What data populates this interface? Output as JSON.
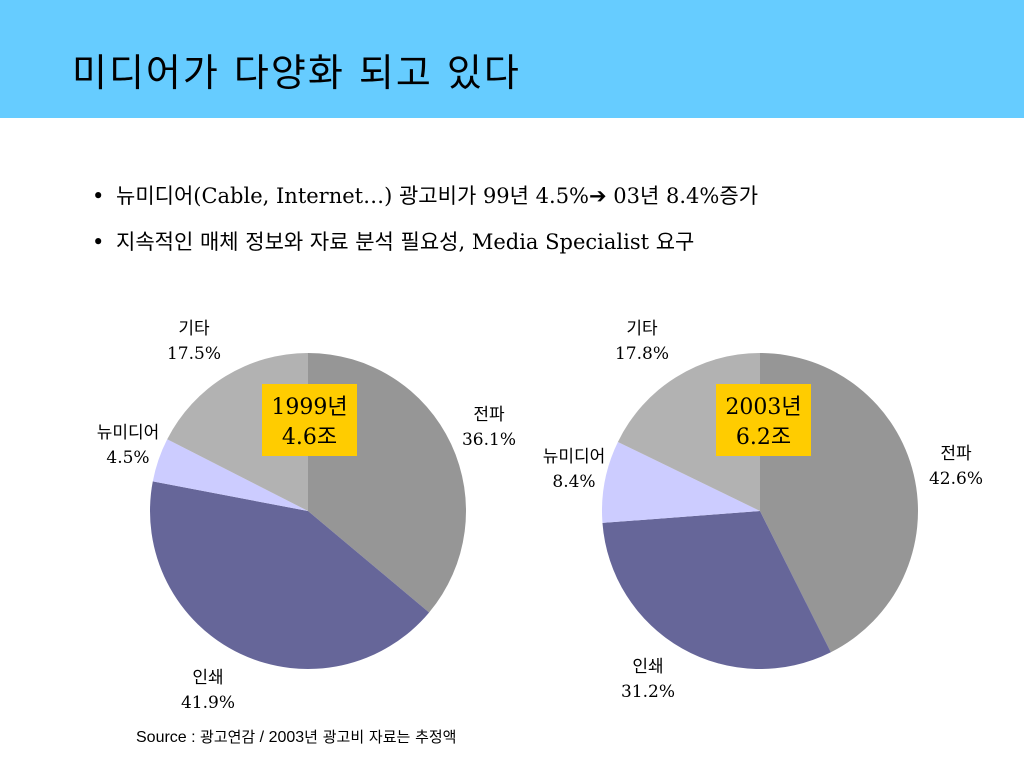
{
  "title": "미디어가 다양화 되고 있다",
  "bullets": [
    {
      "dot": "•",
      "before_arrow": "뉴미디어(Cable, Internet…) 광고비가 99년 4.5%",
      "arrow": "➔",
      "after_arrow": " 03년 8.4%증가"
    },
    {
      "dot": "•",
      "text": "지속적인 매체 정보와 자료 분석 필요성, Media Specialist 요구"
    }
  ],
  "source": {
    "prefix": "Source : ",
    "text_ko1": "광고연감",
    "sep": " / 2003",
    "text_ko2": "년 광고비 자료는 추정액"
  },
  "colors": {
    "title_bar": "#66ccff",
    "label_box": "#ffcc00"
  },
  "chart_data": [
    {
      "type": "pie",
      "year_label": [
        "1999년",
        "4.6조"
      ],
      "slices": [
        {
          "name": "전파",
          "value": 36.1,
          "label": "36.1%",
          "color": "#969696"
        },
        {
          "name": "인쇄",
          "value": 41.9,
          "label": "41.9%",
          "color": "#666699"
        },
        {
          "name": "뉴미디어",
          "value": 4.5,
          "label": "4.5%",
          "color": "#ccccff"
        },
        {
          "name": "기타",
          "value": 17.5,
          "label": "17.5%",
          "color": "#b2b2b2"
        }
      ]
    },
    {
      "type": "pie",
      "year_label": [
        "2003년",
        "6.2조"
      ],
      "slices": [
        {
          "name": "전파",
          "value": 42.6,
          "label": "42.6%",
          "color": "#969696"
        },
        {
          "name": "인쇄",
          "value": 31.2,
          "label": "31.2%",
          "color": "#666699"
        },
        {
          "name": "뉴미디어",
          "value": 8.4,
          "label": "8.4%",
          "color": "#ccccff"
        },
        {
          "name": "기타",
          "value": 17.8,
          "label": "17.8%",
          "color": "#b2b2b2"
        }
      ]
    }
  ]
}
